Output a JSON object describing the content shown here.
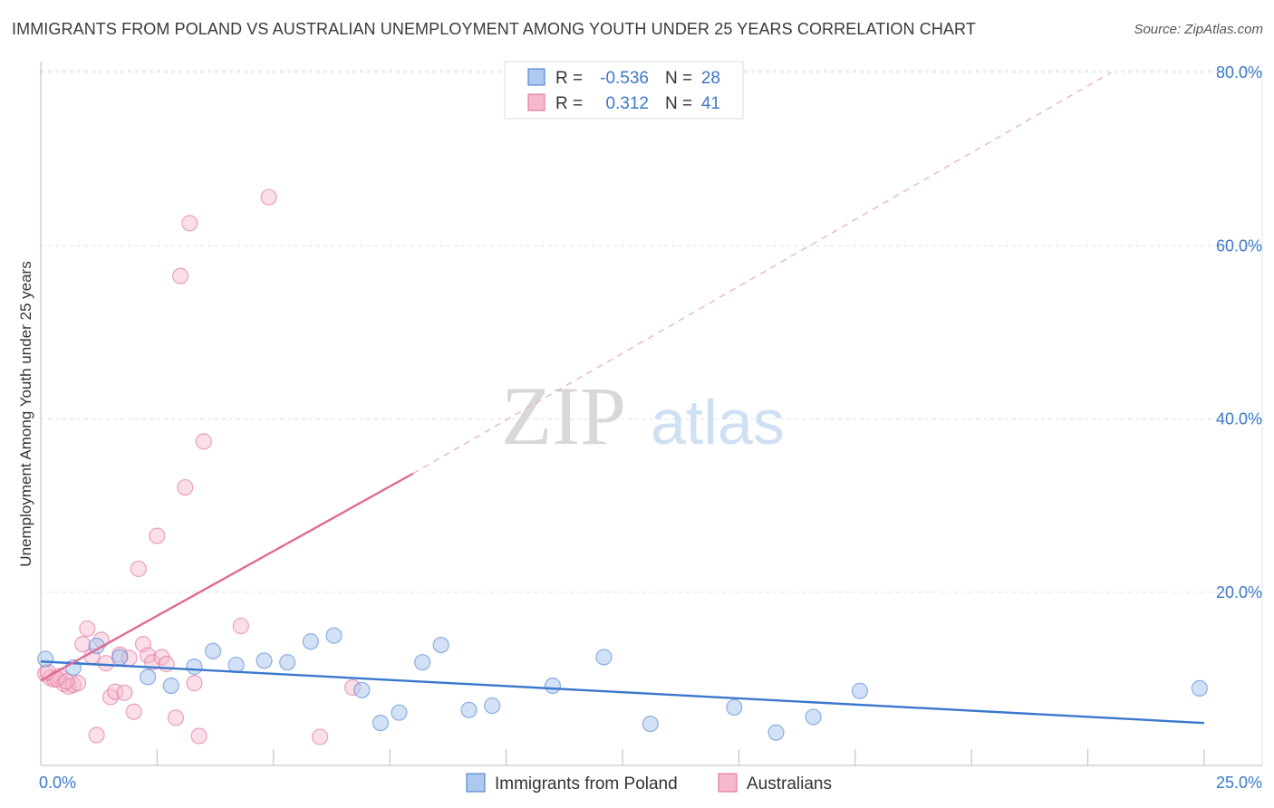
{
  "title": "IMMIGRANTS FROM POLAND VS AUSTRALIAN UNEMPLOYMENT AMONG YOUTH UNDER 25 YEARS CORRELATION CHART",
  "source": "Source: ZipAtlas.com",
  "watermark": {
    "zip": "ZIP",
    "atlas": "atlas"
  },
  "colors": {
    "blue": "#3a78cc",
    "blue_fill": "#aec9ef",
    "pink": "#e06a97",
    "pink_fill": "#f5b8cc",
    "tick": "#3b78c9",
    "grid": "#e0e0e0"
  },
  "legend": {
    "r_label": "R =",
    "n_label": "N =",
    "rows": [
      {
        "r": "-0.536",
        "n": "28",
        "series": "blue"
      },
      {
        "r": "0.312",
        "n": "41",
        "series": "pink"
      }
    ]
  },
  "chart_data": {
    "type": "scatter",
    "title": "IMMIGRANTS FROM POLAND VS AUSTRALIAN UNEMPLOYMENT AMONG YOUTH UNDER 25 YEARS CORRELATION CHART",
    "xlabel": "Immigrants from Poland",
    "ylabel": "Unemployment Among Youth under 25 years",
    "xlim": [
      0,
      25
    ],
    "ylim": [
      0,
      80
    ],
    "x_tick_labels": [
      "0.0%",
      "25.0%"
    ],
    "y_ticks": [
      20,
      40,
      60,
      80
    ],
    "y_tick_labels": [
      "20.0%",
      "40.0%",
      "60.0%",
      "80.0%"
    ],
    "legend_position": "bottom-center",
    "series": [
      {
        "name": "Immigrants from Poland",
        "color": "blue",
        "r": -0.536,
        "n": 28,
        "points": [
          [
            0.1,
            12.3
          ],
          [
            0.7,
            11.3
          ],
          [
            1.2,
            13.8
          ],
          [
            1.7,
            12.5
          ],
          [
            2.3,
            10.2
          ],
          [
            2.8,
            9.2
          ],
          [
            3.3,
            11.4
          ],
          [
            3.7,
            13.2
          ],
          [
            4.2,
            11.6
          ],
          [
            4.8,
            12.1
          ],
          [
            5.3,
            11.9
          ],
          [
            5.8,
            14.3
          ],
          [
            6.3,
            15.0
          ],
          [
            6.9,
            8.7
          ],
          [
            7.3,
            4.9
          ],
          [
            7.7,
            6.1
          ],
          [
            8.2,
            11.9
          ],
          [
            8.6,
            13.9
          ],
          [
            9.2,
            6.4
          ],
          [
            9.7,
            6.9
          ],
          [
            11.0,
            9.2
          ],
          [
            12.1,
            12.5
          ],
          [
            13.1,
            4.8
          ],
          [
            14.9,
            6.7
          ],
          [
            15.8,
            3.8
          ],
          [
            16.6,
            5.6
          ],
          [
            17.6,
            8.6
          ],
          [
            24.9,
            8.9
          ]
        ],
        "trend": {
          "x0": 0,
          "y0": 12.0,
          "x1": 25,
          "y1": 4.9
        }
      },
      {
        "name": "Australians",
        "color": "pink",
        "r": 0.312,
        "n": 41,
        "points": [
          [
            0.1,
            10.6
          ],
          [
            0.2,
            10.1
          ],
          [
            0.3,
            9.9
          ],
          [
            0.4,
            10.3
          ],
          [
            0.5,
            9.4
          ],
          [
            0.6,
            9.1
          ],
          [
            0.7,
            9.3
          ],
          [
            0.8,
            9.5
          ],
          [
            0.9,
            14.0
          ],
          [
            1.0,
            15.8
          ],
          [
            1.1,
            12.6
          ],
          [
            1.2,
            3.5
          ],
          [
            1.3,
            14.5
          ],
          [
            1.4,
            11.8
          ],
          [
            1.5,
            7.9
          ],
          [
            1.6,
            8.5
          ],
          [
            1.7,
            12.8
          ],
          [
            1.8,
            8.4
          ],
          [
            1.9,
            12.4
          ],
          [
            2.0,
            6.2
          ],
          [
            2.1,
            22.7
          ],
          [
            2.2,
            14.0
          ],
          [
            2.3,
            12.7
          ],
          [
            2.4,
            11.9
          ],
          [
            2.5,
            26.5
          ],
          [
            2.6,
            12.5
          ],
          [
            2.7,
            11.7
          ],
          [
            2.9,
            5.5
          ],
          [
            3.0,
            56.5
          ],
          [
            3.1,
            32.1
          ],
          [
            3.2,
            62.6
          ],
          [
            3.3,
            9.5
          ],
          [
            3.4,
            3.4
          ],
          [
            3.5,
            37.4
          ],
          [
            4.3,
            16.1
          ],
          [
            4.9,
            65.6
          ],
          [
            6.0,
            3.3
          ],
          [
            6.7,
            9.0
          ],
          [
            0.15,
            10.8
          ],
          [
            0.35,
            10.0
          ],
          [
            0.55,
            9.7
          ]
        ],
        "trend": {
          "x0": 0,
          "y0": 9.8,
          "x1": 8.0,
          "y1": 33.7
        },
        "trend_dashed_to": {
          "x1": 23.0,
          "y1": 80.0
        }
      }
    ]
  }
}
